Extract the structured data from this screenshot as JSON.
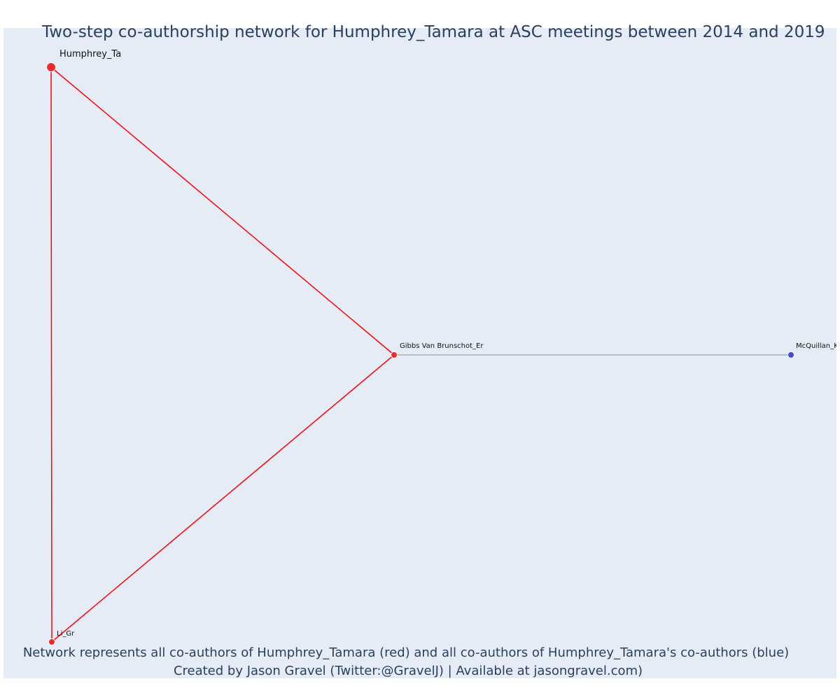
{
  "figure": {
    "title": "Two-step co-authorship network for Humphrey_Tamara at ASC meetings between 2014 and 2019",
    "caption_line1": "Network represents all co-authors of Humphrey_Tamara (red) and all co-authors of Humphrey_Tamara's co-authors (blue)",
    "caption_line2": "Created by Jason Gravel (Twitter:@GravelJ) | Available at jasongravel.com)"
  },
  "colors": {
    "plot_background": "#e5ecf6",
    "text": "#2a3f5f",
    "first_step": "#ef2a2a",
    "second_step": "#4646e0",
    "first_step_edge": "#ff0000",
    "second_step_edge": "#8a8f9c"
  },
  "chart_data": {
    "type": "network",
    "ego": "Humphrey_Tamara",
    "nodes": [
      {
        "id": "humphrey",
        "label": "Humphrey_Ta",
        "group": "ego",
        "color": "red"
      },
      {
        "id": "gibbs",
        "label": "Gibbs Van Brunschot_Er",
        "group": "co-author",
        "color": "red"
      },
      {
        "id": "li",
        "label": "Li_Gr",
        "group": "co-author",
        "color": "red"
      },
      {
        "id": "mcquillan",
        "label": "McQuillan_Ke",
        "group": "co-author-of-co-author",
        "color": "blue"
      }
    ],
    "edges": [
      {
        "source": "humphrey",
        "target": "gibbs",
        "color": "red"
      },
      {
        "source": "humphrey",
        "target": "li",
        "color": "red"
      },
      {
        "source": "gibbs",
        "target": "li",
        "color": "red"
      },
      {
        "source": "gibbs",
        "target": "mcquillan",
        "color": "gray"
      }
    ]
  }
}
